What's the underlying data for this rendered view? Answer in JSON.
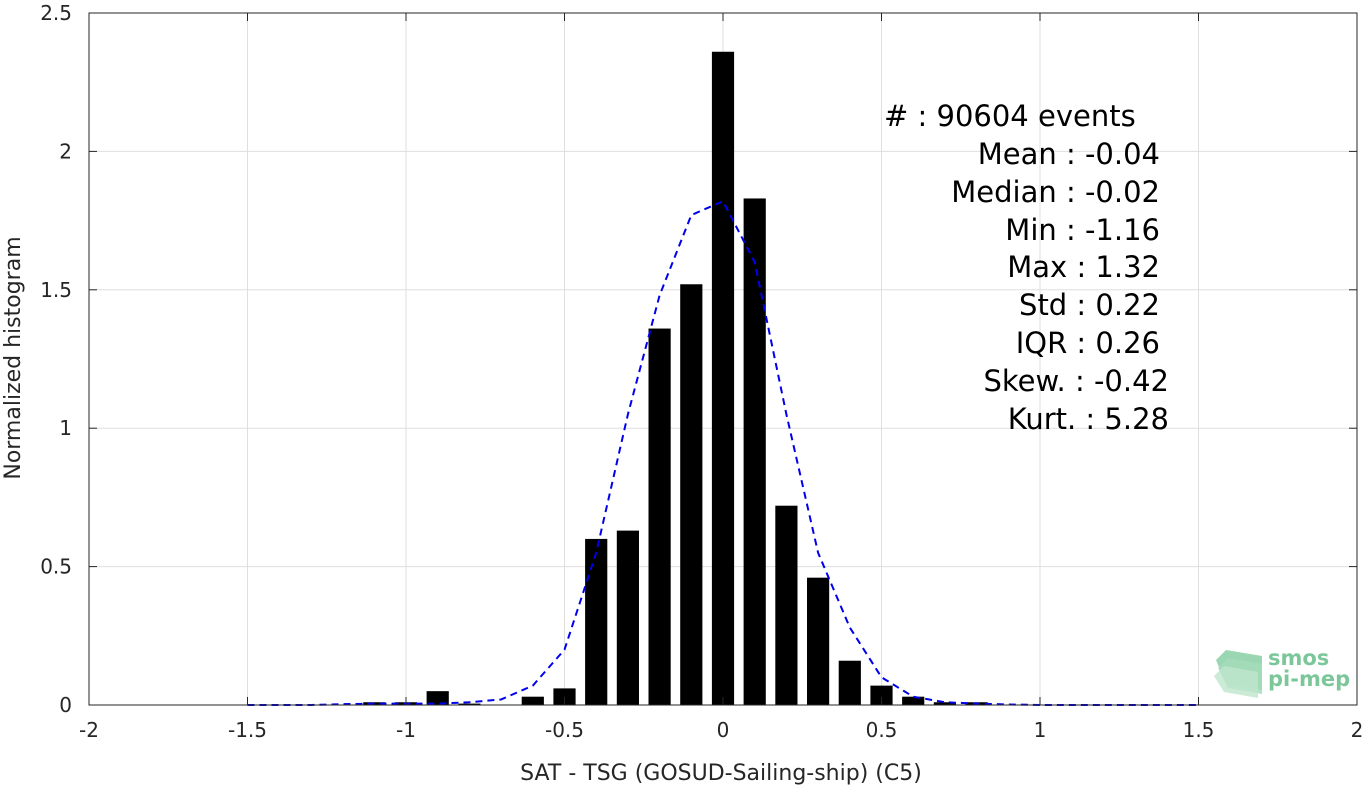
{
  "chart_data": {
    "type": "bar",
    "xlabel": "SAT - TSG (GOSUD-Sailing-ship) (C5)",
    "ylabel": "Normalized histogram",
    "xlim": [
      -2,
      2
    ],
    "ylim": [
      0,
      2.5
    ],
    "xticks": [
      -2,
      -1.5,
      -1,
      -0.5,
      0,
      0.5,
      1,
      1.5,
      2
    ],
    "yticks": [
      0,
      0.5,
      1,
      1.5,
      2,
      2.5
    ],
    "xtick_labels": [
      "-2",
      "-1.5",
      "-1",
      "-0.5",
      "0",
      "0.5",
      "1",
      "1.5",
      "2"
    ],
    "ytick_labels": [
      "0",
      "0.5",
      "1",
      "1.5",
      "2",
      "2.5"
    ],
    "grid": true,
    "bar_color": "#000000",
    "bar_width": 0.07,
    "bars": {
      "x": [
        -1.1,
        -1.0,
        -0.9,
        -0.8,
        -0.6,
        -0.5,
        -0.4,
        -0.3,
        -0.2,
        -0.1,
        0.0,
        0.1,
        0.2,
        0.3,
        0.4,
        0.5,
        0.6,
        0.7,
        0.8
      ],
      "values": [
        0.01,
        0.01,
        0.05,
        0.005,
        0.03,
        0.06,
        0.6,
        0.63,
        1.36,
        1.52,
        2.36,
        1.83,
        0.72,
        0.46,
        0.16,
        0.07,
        0.03,
        0.01,
        0.01
      ]
    },
    "fit_line": {
      "style": "dashed",
      "color": "#0000ee",
      "x": [
        -1.5,
        -1.4,
        -1.3,
        -1.2,
        -1.1,
        -1.0,
        -0.9,
        -0.8,
        -0.7,
        -0.6,
        -0.5,
        -0.4,
        -0.3,
        -0.2,
        -0.1,
        0.0,
        0.1,
        0.2,
        0.3,
        0.4,
        0.5,
        0.6,
        0.7,
        0.8,
        0.9,
        1.0,
        1.1,
        1.2,
        1.3,
        1.4,
        1.5
      ],
      "y": [
        0,
        0,
        0,
        0.003,
        0.005,
        0.005,
        0.005,
        0.01,
        0.02,
        0.07,
        0.2,
        0.55,
        1.05,
        1.48,
        1.77,
        1.82,
        1.6,
        1.05,
        0.55,
        0.28,
        0.1,
        0.03,
        0.01,
        0.005,
        0.002,
        0,
        0,
        0,
        0,
        0,
        0
      ]
    }
  },
  "stats": [
    {
      "label": "#  : 90604 events"
    },
    {
      "label": "Mean : -0.04"
    },
    {
      "label": "Median : -0.02"
    },
    {
      "label": "Min : -1.16"
    },
    {
      "label": "Max : 1.32"
    },
    {
      "label": "Std : 0.22"
    },
    {
      "label": "IQR : 0.26"
    },
    {
      "label": "Skew. : -0.42"
    },
    {
      "label": "Kurt. : 5.28"
    }
  ],
  "logo": {
    "line1": "smos",
    "line2": "pi-mep",
    "color": "#7cc79a"
  }
}
